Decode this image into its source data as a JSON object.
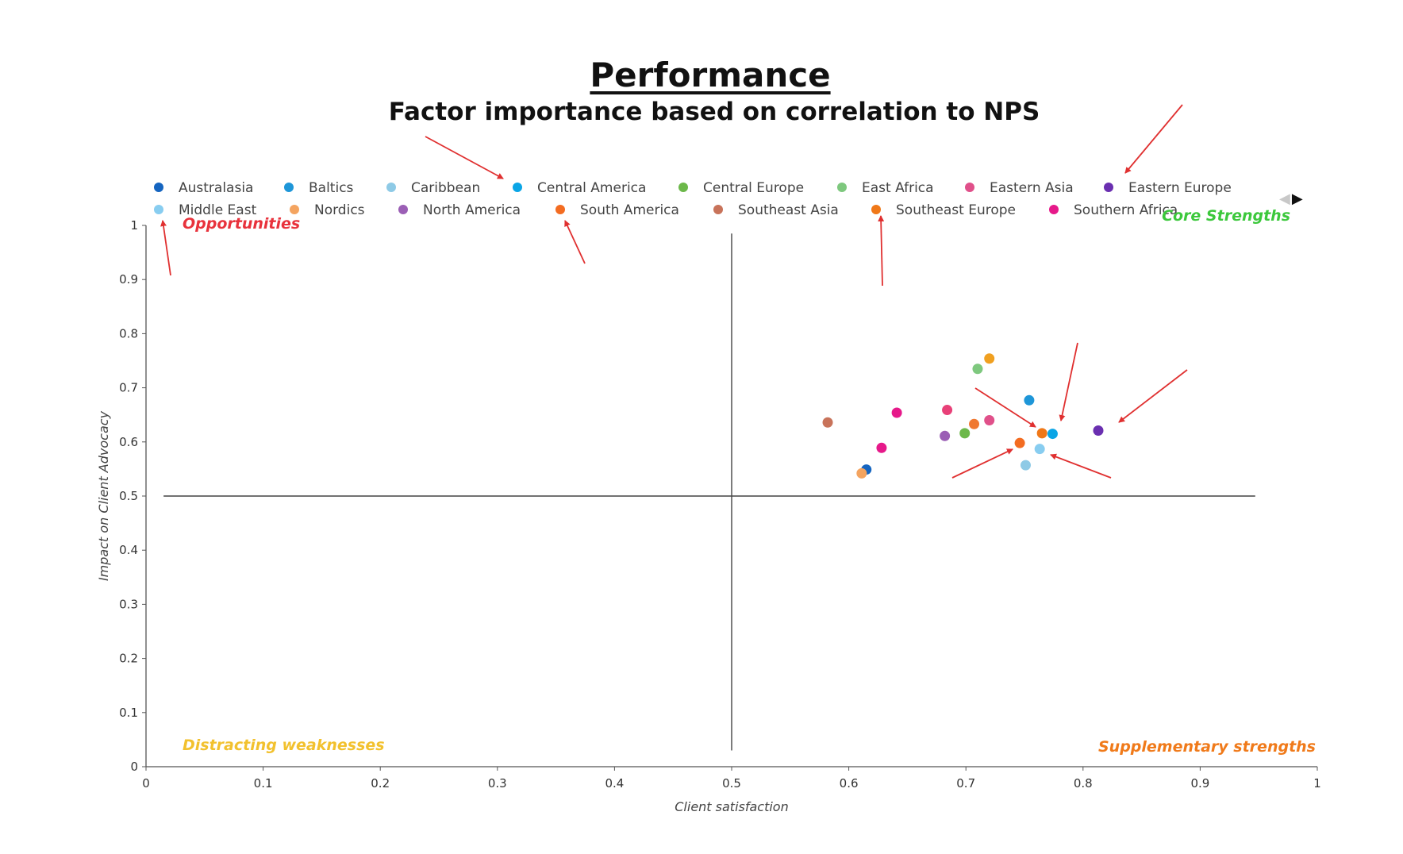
{
  "title": "Performance",
  "subtitle": "Factor importance based on correlation to NPS",
  "chart_data": {
    "type": "scatter",
    "xlabel": "Client satisfaction",
    "ylabel": "Impact on Client Advocacy",
    "xlim": [
      0,
      1
    ],
    "ylim": [
      0,
      1
    ],
    "x_ticks": [
      "0",
      "0.1",
      "0.2",
      "0.3",
      "0.4",
      "0.5",
      "0.6",
      "0.7",
      "0.8",
      "0.9",
      "1"
    ],
    "y_ticks": [
      "0",
      "0.1",
      "0.2",
      "0.3",
      "0.4",
      "0.5",
      "0.6",
      "0.7",
      "0.8",
      "0.9",
      "1"
    ],
    "grid": false,
    "reference_lines": {
      "x": 0.5,
      "y": 0.5
    },
    "legend_position": "top",
    "quadrant_labels": [
      {
        "text": "Opportunities",
        "position": "top-left",
        "color": "#e8323c"
      },
      {
        "text": "Core Strengths",
        "position": "top-right",
        "color": "#3cc83c"
      },
      {
        "text": "Distracting weaknesses",
        "position": "bottom-left",
        "color": "#f2c12e"
      },
      {
        "text": "Supplementary strengths",
        "position": "bottom-right",
        "color": "#f07a1a"
      }
    ],
    "series": [
      {
        "name": "Australasia",
        "color": "#1565c0",
        "x": 0.615,
        "y": 0.549
      },
      {
        "name": "Baltics",
        "color": "#1e96d8",
        "x": 0.754,
        "y": 0.677
      },
      {
        "name": "Caribbean",
        "color": "#8ecae6",
        "x": 0.751,
        "y": 0.557
      },
      {
        "name": "Central America",
        "color": "#0aa5e6",
        "x": 0.774,
        "y": 0.615
      },
      {
        "name": "Central Europe",
        "color": "#6cb84a",
        "x": 0.699,
        "y": 0.616
      },
      {
        "name": "East Africa",
        "color": "#7ec87e",
        "x": 0.71,
        "y": 0.735
      },
      {
        "name": "Eastern Asia",
        "color": "#e0508a",
        "x": 0.72,
        "y": 0.64
      },
      {
        "name": "Eastern Europe",
        "color": "#6a2fb0",
        "x": 0.813,
        "y": 0.621
      },
      {
        "name": "Middle East",
        "color": "#88cdf0",
        "x": 0.763,
        "y": 0.587
      },
      {
        "name": "Nordics",
        "color": "#f4a460",
        "x": 0.611,
        "y": 0.542
      },
      {
        "name": "North America",
        "color": "#9b5fb5",
        "x": 0.682,
        "y": 0.611
      },
      {
        "name": "South America",
        "color": "#f36c21",
        "x": 0.746,
        "y": 0.598
      },
      {
        "name": "Southeast Asia",
        "color": "#c8735a",
        "x": 0.582,
        "y": 0.636
      },
      {
        "name": "Southeast Europe",
        "color": "#f07818",
        "x": 0.765,
        "y": 0.616
      },
      {
        "name": "Southern Africa",
        "color": "#e6198a",
        "x": 0.641,
        "y": 0.654
      },
      {
        "name": "",
        "color": "#f0a020",
        "x": 0.72,
        "y": 0.754
      },
      {
        "name": "",
        "color": "#f07830",
        "x": 0.707,
        "y": 0.633
      },
      {
        "name": "",
        "color": "#e84078",
        "x": 0.684,
        "y": 0.659
      },
      {
        "name": "",
        "color": "#e6198a",
        "x": 0.628,
        "y": 0.589
      }
    ]
  },
  "annotation_arrows": {
    "color": "#e03030",
    "count": 11
  },
  "legend_nav": {
    "prev": "◀",
    "next": "▶"
  }
}
